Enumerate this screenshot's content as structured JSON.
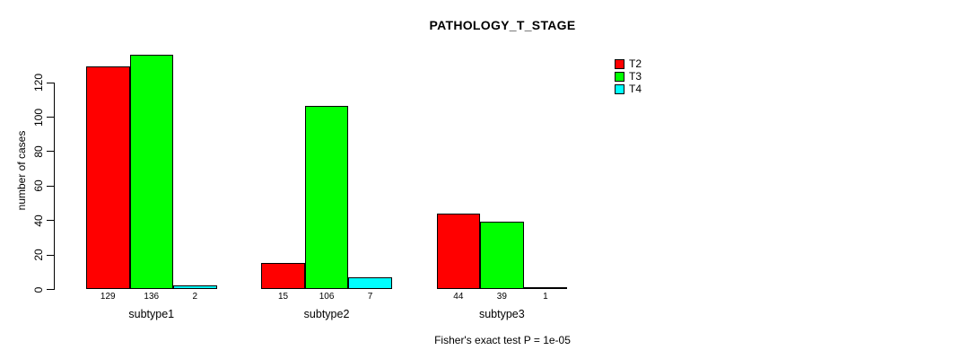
{
  "chart_data": {
    "type": "bar",
    "title": "PATHOLOGY_T_STAGE",
    "categories": [
      "subtype1",
      "subtype2",
      "subtype3"
    ],
    "series": [
      {
        "name": "T2",
        "color": "#FF0000",
        "values": [
          129,
          15,
          44
        ]
      },
      {
        "name": "T3",
        "color": "#00FF00",
        "values": [
          136,
          106,
          39
        ]
      },
      {
        "name": "T4",
        "color": "#00FFFF",
        "values": [
          2,
          7,
          1
        ]
      }
    ],
    "xlabel": "",
    "ylabel": "number of cases",
    "yticks": [
      0,
      20,
      40,
      60,
      80,
      100,
      120
    ],
    "ylim": [
      0,
      140
    ],
    "bar_value_labels": true,
    "annotation": "Fisher's exact test P = 1e-05",
    "legend_position": "top-right",
    "grid": false,
    "bar_border_color": "#000000",
    "background_color": "#FFFFFF"
  }
}
